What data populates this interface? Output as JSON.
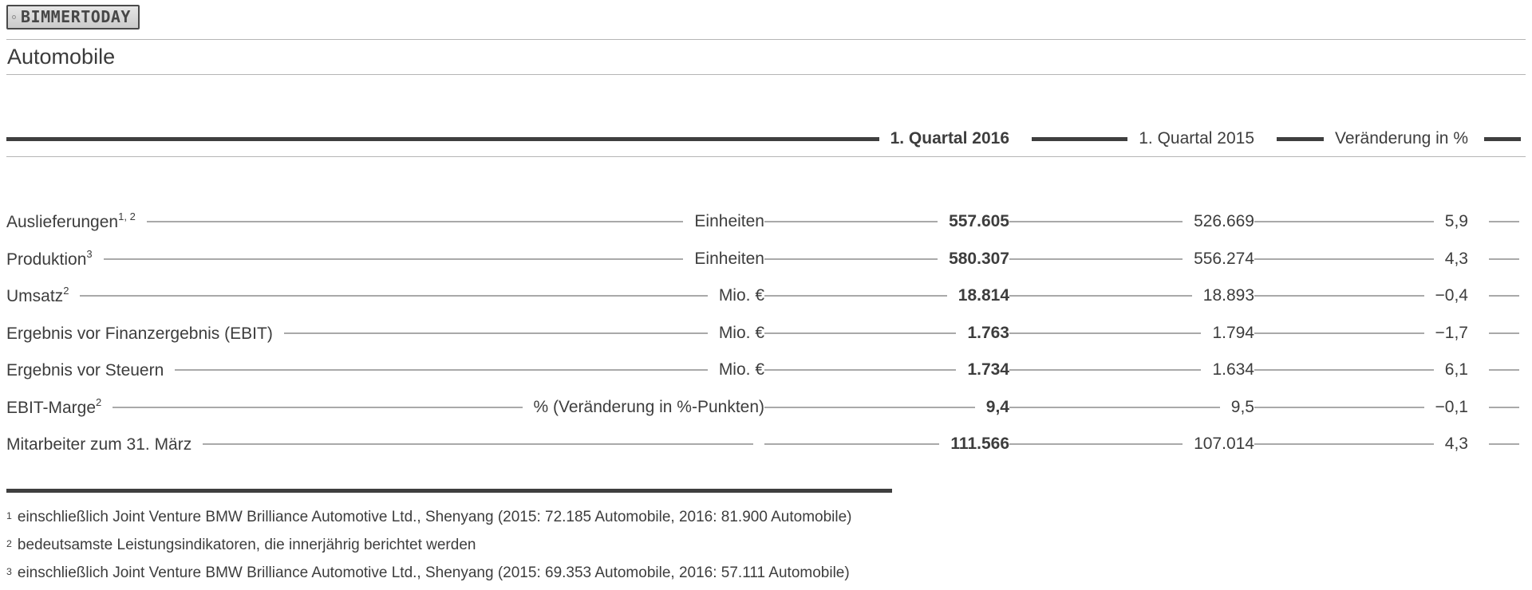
{
  "brand": {
    "logo_text": "BIMMERTODAY"
  },
  "section": {
    "title": "Automobile"
  },
  "table": {
    "columns": [
      "1. Quartal 2016",
      "1. Quartal 2015",
      "Veränderung in %"
    ],
    "rows": [
      {
        "label": "Auslieferungen",
        "sup": "1, 2",
        "unit": "Einheiten",
        "q2016": "557.605",
        "q2015": "526.669",
        "change": "5,9"
      },
      {
        "label": "Produktion",
        "sup": "3",
        "unit": "Einheiten",
        "q2016": "580.307",
        "q2015": "556.274",
        "change": "4,3"
      },
      {
        "label": "Umsatz",
        "sup": "2",
        "unit": "Mio. €",
        "q2016": "18.814",
        "q2015": "18.893",
        "change": "−0,4"
      },
      {
        "label": "Ergebnis vor Finanzergebnis (EBIT)",
        "sup": "",
        "unit": "Mio. €",
        "q2016": "1.763",
        "q2015": "1.794",
        "change": "−1,7"
      },
      {
        "label": "Ergebnis vor Steuern",
        "sup": "",
        "unit": "Mio. €",
        "q2016": "1.734",
        "q2015": "1.634",
        "change": "6,1"
      },
      {
        "label": "EBIT-Marge",
        "sup": "2",
        "unit": "% (Veränderung in %-Punkten)",
        "q2016": "9,4",
        "q2015": "9,5",
        "change": "−0,1"
      },
      {
        "label": "Mitarbeiter zum 31. März",
        "sup": "",
        "unit": "",
        "q2016": "111.566",
        "q2015": "107.014",
        "change": "4,3"
      }
    ]
  },
  "footnotes": [
    {
      "sup": "1",
      "text": "einschließlich Joint Venture BMW Brilliance Automotive Ltd., Shenyang (2015: 72.185 Automobile, 2016: 81.900 Automobile)"
    },
    {
      "sup": "2",
      "text": "bedeutsamste Leistungsindikatoren, die innerjährig berichtet werden"
    },
    {
      "sup": "3",
      "text": "einschließlich Joint Venture BMW Brilliance Automotive Ltd., Shenyang (2015: 69.353 Automobile, 2016: 57.111 Automobile)"
    }
  ],
  "colors": {
    "text": "#3d3d3d",
    "rule_thick": "#3f3f3f",
    "rule_thin": "#b5b5b5",
    "leader_line": "#a9a9a9",
    "plate_bg": "#d9d9d9",
    "plate_border": "#4a4a4a",
    "background": "#ffffff"
  }
}
